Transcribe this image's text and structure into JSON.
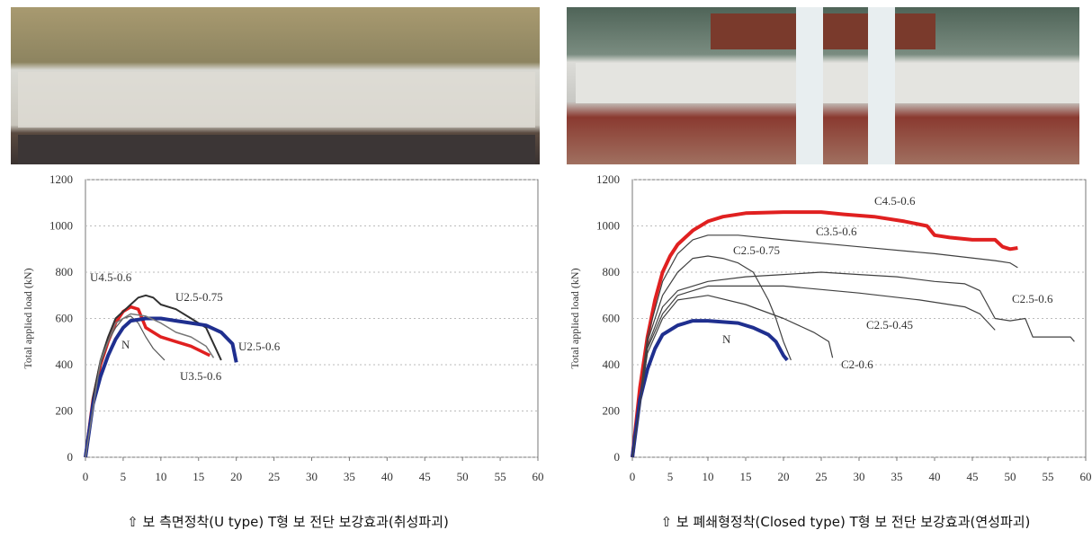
{
  "chart_data": [
    {
      "type": "line",
      "ylabel": "Total applied load (kN)",
      "caption": "⇧ 보 측면정착(U type) T형 보 전단 보강효과(취성파괴)",
      "xlim": [
        0,
        60
      ],
      "xticks": [
        0,
        5,
        10,
        15,
        20,
        25,
        30,
        35,
        40,
        45,
        50,
        55,
        60
      ],
      "ylim": [
        0,
        1200
      ],
      "yticks": [
        0,
        200,
        400,
        600,
        800,
        1000,
        1200
      ],
      "grid": true,
      "series": [
        {
          "name": "U4.5-0.6",
          "color": "#e02020",
          "width": 3.5,
          "x": [
            0,
            1,
            2,
            3,
            4,
            5,
            6,
            7,
            8,
            10,
            12,
            14,
            16.5
          ],
          "values": [
            0,
            250,
            400,
            500,
            580,
            630,
            650,
            640,
            560,
            520,
            500,
            480,
            440
          ]
        },
        {
          "name": "U2.5-0.75",
          "color": "#303030",
          "width": 2,
          "x": [
            0,
            1,
            2,
            3,
            4,
            6,
            7,
            8,
            9,
            10,
            12,
            14,
            16,
            18
          ],
          "values": [
            0,
            260,
            420,
            520,
            600,
            660,
            690,
            700,
            690,
            660,
            640,
            600,
            560,
            420
          ]
        },
        {
          "name": "N",
          "color": "#555555",
          "width": 1.2,
          "x": [
            0,
            1,
            2,
            3,
            4,
            5,
            6,
            7,
            8,
            9,
            10.5
          ],
          "values": [
            0,
            250,
            400,
            500,
            560,
            600,
            610,
            580,
            520,
            470,
            420
          ]
        },
        {
          "name": "U2.5-0.6",
          "color": "#1f2f8f",
          "width": 4,
          "x": [
            0,
            1,
            2,
            3,
            4,
            5,
            6,
            8,
            10,
            12,
            14,
            16,
            18,
            19.5,
            20
          ],
          "values": [
            0,
            230,
            350,
            440,
            510,
            560,
            590,
            600,
            600,
            590,
            580,
            570,
            540,
            490,
            410
          ]
        },
        {
          "name": "U3.5-0.6",
          "color": "#777777",
          "width": 1.5,
          "x": [
            0,
            2,
            4,
            6,
            8,
            10,
            12,
            14,
            16,
            17
          ],
          "values": [
            0,
            420,
            580,
            620,
            610,
            580,
            540,
            520,
            480,
            430
          ]
        }
      ]
    },
    {
      "type": "line",
      "ylabel": "Total applied load (kN)",
      "caption": "⇧ 보 폐쇄형정착(Closed type) T형 보 전단 보강효과(연성파괴)",
      "xlim": [
        0,
        60
      ],
      "xticks": [
        0,
        5,
        10,
        15,
        20,
        25,
        30,
        35,
        40,
        45,
        50,
        55,
        60
      ],
      "ylim": [
        0,
        1200
      ],
      "yticks": [
        0,
        200,
        400,
        600,
        800,
        1000,
        1200
      ],
      "grid": true,
      "series": [
        {
          "name": "C4.5-0.6",
          "color": "#e02020",
          "width": 4,
          "x": [
            0,
            1,
            2,
            3,
            4,
            5,
            6,
            8,
            10,
            12,
            15,
            20,
            25,
            28,
            32,
            36,
            39,
            40,
            42,
            45,
            48,
            49,
            50,
            51
          ],
          "values": [
            0,
            300,
            520,
            680,
            800,
            870,
            920,
            980,
            1020,
            1040,
            1055,
            1060,
            1060,
            1050,
            1040,
            1020,
            1000,
            960,
            950,
            940,
            940,
            910,
            900,
            905
          ]
        },
        {
          "name": "C3.5-0.6",
          "color": "#404040",
          "width": 1.2,
          "x": [
            0,
            2,
            4,
            6,
            8,
            10,
            14,
            20,
            30,
            40,
            48,
            50,
            51
          ],
          "values": [
            0,
            520,
            760,
            880,
            940,
            960,
            960,
            940,
            910,
            880,
            850,
            840,
            820
          ]
        },
        {
          "name": "C2.5-0.75",
          "color": "#404040",
          "width": 1.2,
          "x": [
            0,
            2,
            4,
            6,
            8,
            10,
            12,
            14,
            16,
            18,
            19,
            20,
            21
          ],
          "values": [
            0,
            500,
            700,
            800,
            860,
            870,
            860,
            840,
            800,
            680,
            600,
            500,
            420
          ]
        },
        {
          "name": "C2.5-0.6",
          "color": "#404040",
          "width": 1.2,
          "x": [
            0,
            2,
            4,
            6,
            10,
            15,
            20,
            25,
            30,
            35,
            40,
            44,
            46,
            48,
            50,
            52,
            53,
            58,
            58.5
          ],
          "values": [
            0,
            480,
            650,
            720,
            760,
            780,
            790,
            800,
            790,
            780,
            760,
            750,
            720,
            600,
            590,
            600,
            520,
            520,
            500
          ]
        },
        {
          "name": "C2.5-0.45",
          "color": "#404040",
          "width": 1.2,
          "x": [
            0,
            2,
            4,
            6,
            10,
            20,
            30,
            38,
            44,
            46,
            48
          ],
          "values": [
            0,
            470,
            620,
            700,
            740,
            740,
            710,
            680,
            650,
            620,
            550
          ]
        },
        {
          "name": "N",
          "color": "#1f2f8f",
          "width": 4,
          "x": [
            0,
            1,
            2,
            3,
            4,
            6,
            8,
            10,
            12,
            14,
            16,
            18,
            19,
            20,
            20.5
          ],
          "values": [
            0,
            250,
            380,
            470,
            530,
            570,
            590,
            590,
            585,
            580,
            560,
            530,
            500,
            440,
            420
          ]
        },
        {
          "name": "C2-0.6",
          "color": "#404040",
          "width": 1.2,
          "x": [
            0,
            2,
            4,
            6,
            10,
            15,
            20,
            24,
            26,
            26.5
          ],
          "values": [
            0,
            450,
            600,
            680,
            700,
            660,
            600,
            540,
            500,
            430
          ]
        }
      ]
    }
  ]
}
